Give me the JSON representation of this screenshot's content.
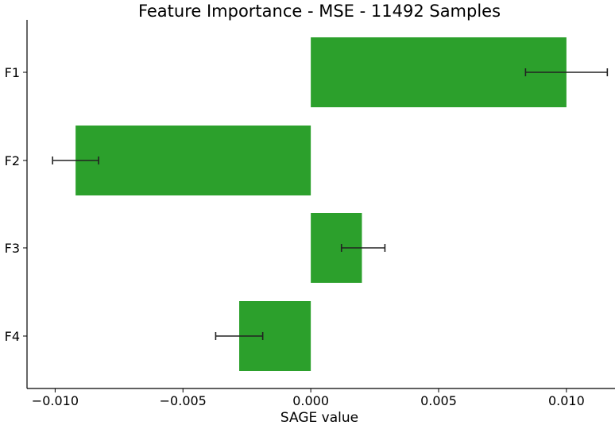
{
  "chart_data": {
    "type": "bar",
    "orientation": "horizontal",
    "title": "Feature Importance - MSE - 11492 Samples",
    "xlabel": "SAGE value",
    "ylabel": "",
    "categories": [
      "F1",
      "F2",
      "F3",
      "F4"
    ],
    "values": [
      0.01,
      -0.0092,
      0.002,
      -0.0028
    ],
    "error": [
      0.0016,
      0.0009,
      0.00085,
      0.00092
    ],
    "error_center": [
      0.01,
      -0.0092,
      0.00205,
      -0.0028
    ],
    "xlim": [
      -0.0111,
      0.0119
    ],
    "xticks": [
      -0.01,
      -0.005,
      0.0,
      0.005,
      0.01
    ],
    "xtick_labels": [
      "−0.010",
      "−0.005",
      "0.000",
      "0.005",
      "0.010"
    ],
    "bar_color": "#2ca02c",
    "grid": false,
    "legend": "none"
  }
}
